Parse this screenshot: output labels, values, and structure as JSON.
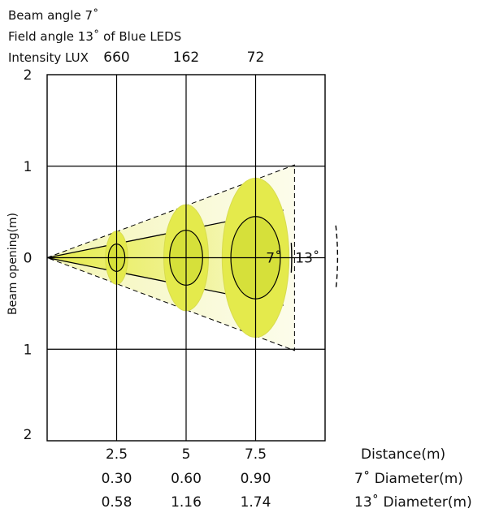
{
  "header": {
    "beam_angle_label": "Beam angle 7˚",
    "field_angle_label": "Field angle 13˚  of Blue LEDS",
    "intensity_label": "Intensity LUX"
  },
  "chart_data": {
    "type": "scatter",
    "title": "",
    "xlabel": "Distance(m)",
    "ylabel": "Beam opening(m)",
    "xlim": [
      0,
      10
    ],
    "ylim": [
      -2,
      2
    ],
    "y_tick_labels": [
      "2",
      "1",
      "0",
      "1",
      "2"
    ],
    "x_ticks": [
      2.5,
      5,
      7.5
    ],
    "x_tick_labels": [
      "2.5",
      "5",
      "7.5"
    ],
    "grid": true,
    "intensity_lux": [
      {
        "distance": 2.5,
        "value": "660"
      },
      {
        "distance": 5,
        "value": "162"
      },
      {
        "distance": 7.5,
        "value": "72"
      }
    ],
    "series": [
      {
        "name": "7˚ Diameter(m)",
        "angle_deg": 7,
        "x": [
          2.5,
          5,
          7.5
        ],
        "values": [
          0.3,
          0.6,
          0.9
        ],
        "labels": [
          "0.30",
          "0.60",
          "0.90"
        ]
      },
      {
        "name": "13˚ Diameter(m)",
        "angle_deg": 13,
        "x": [
          2.5,
          5,
          7.5
        ],
        "values": [
          0.58,
          1.16,
          1.74
        ],
        "labels": [
          "0.58",
          "1.16",
          "1.74"
        ]
      }
    ],
    "annotations": {
      "beam_angle": "7˚",
      "field_angle": "13˚"
    },
    "colors": {
      "beam_fill": "#e6eb4a",
      "field_fill": "#f6f7c4",
      "outline": "#000000"
    }
  }
}
